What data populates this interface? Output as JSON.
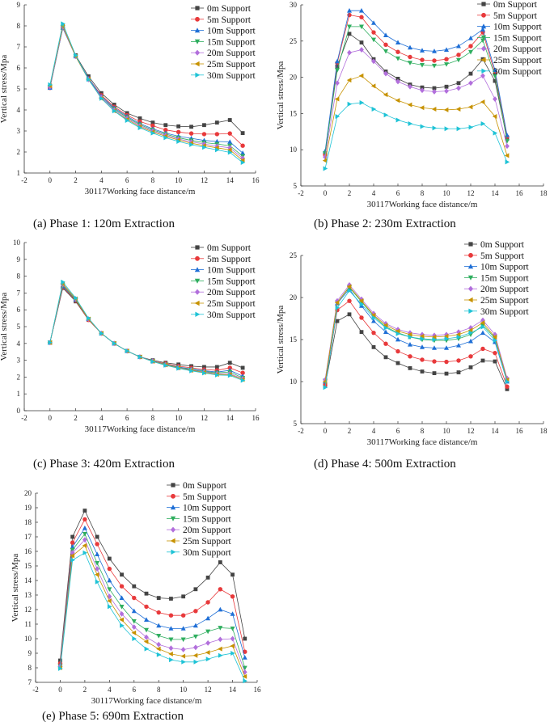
{
  "figure": {
    "colors": [
      "#444444",
      "#e8393b",
      "#1f6fd6",
      "#2fae5f",
      "#b26fdc",
      "#c79200",
      "#1fc3d6"
    ],
    "markers": [
      "square",
      "circle",
      "triangle-up",
      "triangle-down",
      "diamond",
      "triangle-left",
      "triangle-right"
    ]
  },
  "chart_data": [
    {
      "type": "line",
      "caption": "(a) Phase 1: 120m Extraction",
      "xlabel": "30117Working face distance/m",
      "ylabel": "Vertical stress/Mpa",
      "xlim": [
        -2,
        16
      ],
      "ylim": [
        1,
        9
      ],
      "xticks": [
        -2,
        0,
        2,
        4,
        6,
        8,
        10,
        12,
        14,
        16
      ],
      "yticks": [
        1,
        2,
        3,
        4,
        5,
        6,
        7,
        8,
        9
      ],
      "x": [
        0,
        1,
        2,
        3,
        4,
        5,
        6,
        7,
        8,
        9,
        10,
        11,
        12,
        13,
        14,
        15
      ],
      "series": [
        {
          "name": "0m Support",
          "values": [
            5.1,
            7.95,
            6.6,
            5.6,
            4.8,
            4.25,
            3.85,
            3.6,
            3.4,
            3.28,
            3.22,
            3.2,
            3.28,
            3.4,
            3.52,
            2.9
          ]
        },
        {
          "name": "5m Support",
          "values": [
            5.05,
            7.9,
            6.55,
            5.5,
            4.7,
            4.15,
            3.75,
            3.45,
            3.25,
            3.05,
            2.95,
            2.88,
            2.85,
            2.85,
            2.88,
            2.3
          ]
        },
        {
          "name": "10m Support",
          "values": [
            5.05,
            7.9,
            6.55,
            5.5,
            4.65,
            4.1,
            3.7,
            3.35,
            3.1,
            2.9,
            2.75,
            2.65,
            2.55,
            2.5,
            2.48,
            1.95
          ]
        },
        {
          "name": "15m Support",
          "values": [
            5.1,
            7.95,
            6.55,
            5.45,
            4.6,
            4.05,
            3.65,
            3.3,
            3.05,
            2.85,
            2.68,
            2.55,
            2.45,
            2.38,
            2.3,
            1.8
          ]
        },
        {
          "name": "20m Support",
          "values": [
            5.1,
            7.95,
            6.55,
            5.45,
            4.6,
            4.0,
            3.6,
            3.25,
            3.0,
            2.8,
            2.62,
            2.48,
            2.38,
            2.28,
            2.2,
            1.7
          ]
        },
        {
          "name": "25m Support",
          "values": [
            5.15,
            8.0,
            6.55,
            5.45,
            4.55,
            3.95,
            3.55,
            3.2,
            2.95,
            2.75,
            2.57,
            2.42,
            2.3,
            2.2,
            2.1,
            1.6
          ]
        },
        {
          "name": "30m Support",
          "values": [
            5.2,
            8.1,
            6.6,
            5.45,
            4.55,
            3.95,
            3.5,
            3.15,
            2.9,
            2.68,
            2.5,
            2.35,
            2.22,
            2.1,
            1.98,
            1.5
          ]
        }
      ]
    },
    {
      "type": "line",
      "caption": "(b) Phase 2: 230m Extraction",
      "xlabel": "30117Working face distance/m",
      "ylabel": "Vertical stress/Mpa",
      "xlim": [
        -2,
        18
      ],
      "ylim": [
        5,
        30
      ],
      "xticks": [
        -2,
        0,
        2,
        4,
        6,
        8,
        10,
        12,
        14,
        16,
        18
      ],
      "yticks": [
        5,
        10,
        15,
        20,
        25,
        30
      ],
      "x": [
        0,
        1,
        2,
        3,
        4,
        5,
        6,
        7,
        8,
        9,
        10,
        11,
        12,
        13,
        14,
        15
      ],
      "series": [
        {
          "name": "0m Support",
          "values": [
            9.5,
            21.5,
            26.0,
            24.8,
            22.5,
            20.8,
            19.8,
            19.0,
            18.6,
            18.5,
            18.7,
            19.2,
            20.5,
            22.5,
            19.5,
            11.5
          ]
        },
        {
          "name": "5m Support",
          "values": [
            9.3,
            22.0,
            28.6,
            28.3,
            26.2,
            24.5,
            23.5,
            22.8,
            22.4,
            22.3,
            22.5,
            23.1,
            24.3,
            26.2,
            20.5,
            11.8
          ]
        },
        {
          "name": "10m Support",
          "values": [
            9.8,
            22.2,
            29.2,
            29.2,
            27.5,
            25.8,
            24.8,
            24.1,
            23.7,
            23.6,
            23.8,
            24.3,
            25.4,
            26.6,
            21.0,
            12.0
          ]
        },
        {
          "name": "15m Support",
          "values": [
            9.5,
            21.0,
            27.0,
            27.0,
            25.2,
            23.6,
            22.6,
            22.0,
            21.7,
            21.6,
            21.8,
            22.4,
            23.5,
            25.1,
            20.2,
            11.2
          ]
        },
        {
          "name": "20m Support",
          "values": [
            9.0,
            19.2,
            23.4,
            23.8,
            22.2,
            20.5,
            19.4,
            18.7,
            18.2,
            18.0,
            18.1,
            18.5,
            19.2,
            20.2,
            17.0,
            10.5
          ]
        },
        {
          "name": "25m Support",
          "values": [
            8.5,
            17.0,
            19.6,
            20.2,
            18.8,
            17.6,
            16.8,
            16.2,
            15.8,
            15.6,
            15.5,
            15.6,
            15.9,
            16.6,
            14.6,
            9.2
          ]
        },
        {
          "name": "30m Support",
          "values": [
            7.4,
            14.6,
            16.3,
            16.5,
            15.6,
            14.8,
            14.1,
            13.6,
            13.2,
            13.0,
            12.9,
            12.9,
            13.1,
            13.6,
            12.3,
            8.3
          ]
        }
      ]
    },
    {
      "type": "line",
      "caption": "(c) Phase 3: 420m Extraction",
      "xlabel": "30117Working face distance/m",
      "ylabel": "Vertical stress/Mpa",
      "xlim": [
        -2,
        16
      ],
      "ylim": [
        0,
        10
      ],
      "xticks": [
        -2,
        0,
        2,
        4,
        6,
        8,
        10,
        12,
        14,
        16
      ],
      "yticks": [
        0,
        1,
        2,
        3,
        4,
        5,
        6,
        7,
        8,
        9,
        10
      ],
      "x": [
        0,
        1,
        2,
        3,
        4,
        5,
        6,
        7,
        8,
        9,
        10,
        11,
        12,
        13,
        14,
        15
      ],
      "series": [
        {
          "name": "0m Support",
          "values": [
            4.05,
            7.3,
            6.5,
            5.4,
            4.6,
            4.0,
            3.55,
            3.2,
            3.0,
            2.85,
            2.75,
            2.65,
            2.6,
            2.6,
            2.85,
            2.55
          ]
        },
        {
          "name": "5m Support",
          "values": [
            4.05,
            7.35,
            6.55,
            5.4,
            4.6,
            4.0,
            3.55,
            3.2,
            2.95,
            2.8,
            2.65,
            2.55,
            2.45,
            2.4,
            2.55,
            2.25
          ]
        },
        {
          "name": "10m Support",
          "values": [
            4.05,
            7.4,
            6.6,
            5.45,
            4.6,
            4.0,
            3.55,
            3.2,
            2.95,
            2.75,
            2.6,
            2.48,
            2.38,
            2.3,
            2.4,
            2.05
          ]
        },
        {
          "name": "15m Support",
          "values": [
            4.05,
            7.45,
            6.6,
            5.45,
            4.6,
            4.0,
            3.55,
            3.2,
            2.95,
            2.75,
            2.58,
            2.45,
            2.33,
            2.25,
            2.3,
            1.95
          ]
        },
        {
          "name": "20m Support",
          "values": [
            4.05,
            7.5,
            6.65,
            5.45,
            4.6,
            4.0,
            3.55,
            3.2,
            2.95,
            2.73,
            2.56,
            2.42,
            2.3,
            2.2,
            2.2,
            1.9
          ]
        },
        {
          "name": "25m Support",
          "values": [
            4.05,
            7.55,
            6.65,
            5.45,
            4.6,
            4.0,
            3.55,
            3.2,
            2.93,
            2.72,
            2.54,
            2.4,
            2.27,
            2.16,
            2.15,
            1.85
          ]
        },
        {
          "name": "30m Support",
          "values": [
            4.05,
            7.65,
            6.7,
            5.5,
            4.6,
            4.0,
            3.55,
            3.2,
            2.92,
            2.7,
            2.52,
            2.37,
            2.24,
            2.12,
            2.1,
            1.8
          ]
        }
      ]
    },
    {
      "type": "line",
      "caption": "(d) Phase 4: 500m Extraction",
      "xlabel": "30117Working face distance/m",
      "ylabel": "Vertical stress/Mpa",
      "xlim": [
        -2,
        18
      ],
      "ylim": [
        5,
        25
      ],
      "xticks": [
        -2,
        0,
        2,
        4,
        6,
        8,
        10,
        12,
        14,
        16,
        18
      ],
      "yticks": [
        5,
        10,
        15,
        20,
        25
      ],
      "x": [
        0,
        1,
        2,
        3,
        4,
        5,
        6,
        7,
        8,
        9,
        10,
        11,
        12,
        13,
        14,
        15
      ],
      "series": [
        {
          "name": "0m Support",
          "values": [
            9.5,
            17.2,
            18.0,
            15.9,
            14.1,
            12.9,
            12.2,
            11.6,
            11.2,
            11.0,
            10.95,
            11.1,
            11.7,
            12.5,
            12.4,
            9.1
          ]
        },
        {
          "name": "5m Support",
          "values": [
            9.6,
            18.5,
            19.6,
            17.6,
            15.8,
            14.5,
            13.6,
            13.0,
            12.6,
            12.4,
            12.35,
            12.5,
            13.0,
            13.9,
            13.4,
            9.4
          ]
        },
        {
          "name": "10m Support",
          "values": [
            10.0,
            19.3,
            21.0,
            19.0,
            17.2,
            15.9,
            15.0,
            14.4,
            14.1,
            14.0,
            14.0,
            14.3,
            14.8,
            15.8,
            14.7,
            10.0
          ]
        },
        {
          "name": "15m Support",
          "values": [
            10.1,
            19.4,
            21.2,
            19.5,
            17.8,
            16.5,
            15.8,
            15.3,
            15.0,
            14.9,
            14.9,
            15.1,
            15.6,
            16.7,
            15.2,
            10.2
          ]
        },
        {
          "name": "20m Support",
          "values": [
            10.2,
            19.6,
            21.5,
            19.8,
            18.1,
            16.9,
            16.2,
            15.8,
            15.6,
            15.5,
            15.6,
            15.9,
            16.4,
            17.3,
            15.6,
            10.4
          ]
        },
        {
          "name": "25m Support",
          "values": [
            10.0,
            19.4,
            21.3,
            19.6,
            17.9,
            16.7,
            16.0,
            15.6,
            15.4,
            15.3,
            15.4,
            15.6,
            16.1,
            17.0,
            15.3,
            10.2
          ]
        },
        {
          "name": "30m Support",
          "values": [
            9.3,
            18.8,
            20.8,
            19.2,
            17.6,
            16.4,
            15.7,
            15.3,
            15.1,
            15.0,
            15.1,
            15.3,
            15.8,
            16.5,
            14.9,
            10.0
          ]
        }
      ]
    },
    {
      "type": "line",
      "caption": "(e) Phase 5: 690m Extraction",
      "xlabel": "30117Working face distance/m",
      "ylabel": "Vertical stress/Mpa",
      "xlim": [
        -2,
        16
      ],
      "ylim": [
        7,
        20
      ],
      "xticks": [
        -2,
        0,
        2,
        4,
        6,
        8,
        10,
        12,
        14,
        16
      ],
      "yticks": [
        7,
        8,
        9,
        10,
        11,
        12,
        13,
        14,
        15,
        16,
        17,
        18,
        19,
        20
      ],
      "x": [
        0,
        1,
        2,
        3,
        4,
        5,
        6,
        7,
        8,
        9,
        10,
        11,
        12,
        13,
        14,
        15
      ],
      "series": [
        {
          "name": "0m Support",
          "values": [
            8.5,
            17.0,
            18.8,
            17.0,
            15.5,
            14.4,
            13.6,
            13.1,
            12.8,
            12.75,
            12.9,
            13.4,
            14.2,
            15.25,
            14.4,
            10.0
          ]
        },
        {
          "name": "5m Support",
          "values": [
            8.3,
            16.6,
            18.2,
            16.5,
            14.8,
            13.6,
            12.8,
            12.2,
            11.8,
            11.6,
            11.6,
            11.9,
            12.5,
            13.4,
            12.9,
            9.1
          ]
        },
        {
          "name": "10m Support",
          "values": [
            8.2,
            16.3,
            17.6,
            15.8,
            14.0,
            12.8,
            11.9,
            11.3,
            10.9,
            10.7,
            10.7,
            10.9,
            11.4,
            12.0,
            11.7,
            8.7
          ]
        },
        {
          "name": "15m Support",
          "values": [
            8.1,
            16.1,
            17.2,
            15.2,
            13.4,
            12.2,
            11.2,
            10.6,
            10.2,
            9.95,
            9.95,
            10.15,
            10.5,
            10.75,
            10.7,
            8.0
          ]
        },
        {
          "name": "20m Support",
          "values": [
            8.1,
            15.9,
            16.8,
            14.8,
            12.9,
            11.7,
            10.8,
            10.1,
            9.6,
            9.35,
            9.25,
            9.4,
            9.7,
            9.95,
            10.0,
            7.7
          ]
        },
        {
          "name": "25m Support",
          "values": [
            8.0,
            15.7,
            16.4,
            14.4,
            12.6,
            11.3,
            10.4,
            9.8,
            9.3,
            8.95,
            8.8,
            8.85,
            9.05,
            9.3,
            9.5,
            7.4
          ]
        },
        {
          "name": "30m Support",
          "values": [
            7.95,
            15.4,
            15.9,
            13.9,
            12.2,
            10.9,
            10.0,
            9.3,
            8.9,
            8.55,
            8.4,
            8.4,
            8.6,
            8.85,
            9.0,
            7.1
          ]
        }
      ]
    }
  ]
}
